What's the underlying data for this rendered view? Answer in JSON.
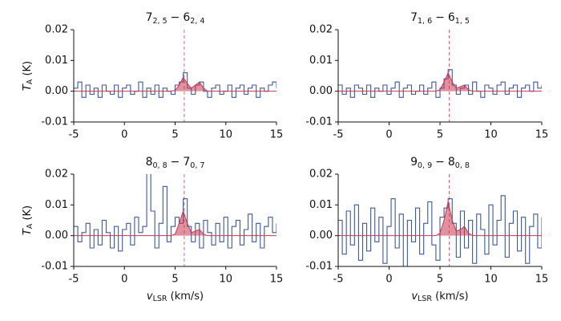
{
  "chart_data": [
    {
      "type": "step",
      "title": {
        "upper_level": "7",
        "upper_sub": "2, 5",
        "separator": "−",
        "lower_level": "6",
        "lower_sub": "2, 4"
      },
      "ylabel": {
        "symbol": "T",
        "subscript": "A",
        "unit": "(K)"
      },
      "xlim": [
        -5,
        15
      ],
      "xticks": [
        -5,
        0,
        5,
        10,
        15
      ],
      "ylim": [
        -0.01,
        0.02
      ],
      "yticks": [
        -0.01,
        {
          "value": 0,
          "label": "0.00"
        },
        0.01,
        0.02
      ],
      "marker_x": 5.9,
      "x": [
        -5,
        -4.6,
        -4.2,
        -3.8,
        -3.4,
        -3,
        -2.6,
        -2.2,
        -1.8,
        -1.4,
        -1,
        -0.6,
        -0.2,
        0.2,
        0.6,
        1,
        1.4,
        1.8,
        2.2,
        2.6,
        3,
        3.4,
        3.8,
        4.2,
        4.6,
        5,
        5.4,
        5.8,
        6.2,
        6.6,
        7,
        7.4,
        7.8,
        8.2,
        8.6,
        9,
        9.4,
        9.8,
        10.2,
        10.6,
        11,
        11.4,
        11.8,
        12.2,
        12.6,
        13,
        13.4,
        13.8,
        14.2,
        14.6,
        15
      ],
      "series": [
        {
          "color": "#3a57a8",
          "values": [
            0.001,
            0.003,
            -0.002,
            0.002,
            -0.001,
            0.001,
            -0.002,
            0.002,
            0.0,
            -0.001,
            0.002,
            -0.002,
            0.001,
            0.002,
            -0.001,
            0.0,
            0.003,
            -0.002,
            0.001,
            -0.001,
            0.002,
            -0.002,
            0.001,
            0.0,
            -0.001,
            0.002,
            0.003,
            0.006,
            0.001,
            -0.001,
            0.002,
            0.003,
            0.0,
            -0.002,
            0.001,
            0.002,
            -0.001,
            0.0,
            0.002,
            -0.002,
            0.001,
            0.002,
            -0.001,
            0.001,
            0.002,
            -0.002,
            0.001,
            0.0,
            0.002,
            0.003,
            0.001
          ]
        },
        {
          "color": "#c8384f",
          "x": [
            -5,
            4.6,
            5.0,
            5.4,
            5.8,
            6.2,
            6.6,
            7.0,
            7.4,
            7.8,
            8.2,
            15
          ],
          "values": [
            0,
            0,
            0.0003,
            0.002,
            0.0045,
            0.0025,
            0.001,
            0.002,
            0.003,
            0.001,
            0,
            0
          ]
        }
      ]
    },
    {
      "type": "step",
      "title": {
        "upper_level": "7",
        "upper_sub": "1, 6",
        "separator": "−",
        "lower_level": "6",
        "lower_sub": "1, 5"
      },
      "xlim": [
        -5,
        15
      ],
      "xticks": [
        -5,
        0,
        5,
        10,
        15
      ],
      "ylim": [
        -0.01,
        0.02
      ],
      "yticks": [
        -0.01,
        {
          "value": 0,
          "label": "0.00"
        },
        0.01,
        0.02
      ],
      "marker_x": 5.9,
      "x": [
        -5,
        -4.6,
        -4.2,
        -3.8,
        -3.4,
        -3,
        -2.6,
        -2.2,
        -1.8,
        -1.4,
        -1,
        -0.6,
        -0.2,
        0.2,
        0.6,
        1,
        1.4,
        1.8,
        2.2,
        2.6,
        3,
        3.4,
        3.8,
        4.2,
        4.6,
        5,
        5.4,
        5.8,
        6.2,
        6.6,
        7,
        7.4,
        7.8,
        8.2,
        8.6,
        9,
        9.4,
        9.8,
        10.2,
        10.6,
        11,
        11.4,
        11.8,
        12.2,
        12.6,
        13,
        13.4,
        13.8,
        14.2,
        14.6,
        15
      ],
      "series": [
        {
          "color": "#3a57a8",
          "values": [
            0.002,
            -0.001,
            0.001,
            -0.002,
            0.002,
            0.001,
            -0.001,
            0.002,
            -0.002,
            0.001,
            0.0,
            0.002,
            -0.001,
            0.001,
            0.003,
            -0.002,
            0.001,
            0.002,
            -0.001,
            0.0,
            0.002,
            -0.001,
            0.001,
            0.003,
            -0.002,
            0.001,
            0.004,
            0.007,
            0.002,
            -0.001,
            0.001,
            0.002,
            -0.001,
            0.003,
            0.0,
            -0.002,
            0.002,
            0.001,
            -0.001,
            0.002,
            0.003,
            -0.001,
            0.001,
            0.002,
            -0.002,
            0.001,
            0.002,
            0.0,
            0.003,
            0.001,
            0.002
          ]
        },
        {
          "color": "#c8384f",
          "x": [
            -5,
            4.6,
            5.0,
            5.4,
            5.8,
            6.2,
            6.6,
            7.0,
            7.4,
            7.8,
            8.2,
            15
          ],
          "values": [
            0,
            0,
            0.0005,
            0.003,
            0.006,
            0.003,
            0.001,
            0.0015,
            0.002,
            0.0005,
            0,
            0
          ]
        }
      ]
    },
    {
      "type": "step",
      "title": {
        "upper_level": "8",
        "upper_sub": "0, 8",
        "separator": "−",
        "lower_level": "7",
        "lower_sub": "0, 7"
      },
      "ylabel": {
        "symbol": "T",
        "subscript": "A",
        "unit": "(K)"
      },
      "xlabel": {
        "symbol": "v",
        "subscript": "LSR",
        "unit": "(km/s)"
      },
      "xlim": [
        -5,
        15
      ],
      "xticks": [
        -5,
        0,
        5,
        10,
        15
      ],
      "ylim": [
        -0.01,
        0.02
      ],
      "yticks": [
        -0.01,
        {
          "value": 0,
          "label": "0.00"
        },
        0.01,
        0.02
      ],
      "marker_x": 5.9,
      "x": [
        -5,
        -4.6,
        -4.2,
        -3.8,
        -3.4,
        -3,
        -2.6,
        -2.2,
        -1.8,
        -1.4,
        -1,
        -0.6,
        -0.2,
        0.2,
        0.6,
        1,
        1.4,
        1.8,
        2.2,
        2.6,
        3,
        3.4,
        3.8,
        4.2,
        4.6,
        5,
        5.4,
        5.8,
        6.2,
        6.6,
        7,
        7.4,
        7.8,
        8.2,
        8.6,
        9,
        9.4,
        9.8,
        10.2,
        10.6,
        11,
        11.4,
        11.8,
        12.2,
        12.6,
        13,
        13.4,
        13.8,
        14.2,
        14.6,
        15
      ],
      "series": [
        {
          "color": "#3a57a8",
          "values": [
            0.003,
            -0.002,
            0.001,
            0.004,
            -0.004,
            0.002,
            -0.003,
            0.005,
            0.001,
            -0.004,
            0.003,
            -0.005,
            0.002,
            0.004,
            -0.003,
            0.006,
            0.001,
            0.003,
            0.03,
            0.008,
            -0.004,
            0.004,
            0.016,
            -0.002,
            0.003,
            0.006,
            0.004,
            0.012,
            0.003,
            -0.002,
            0.004,
            -0.004,
            0.005,
            0.001,
            -0.003,
            0.004,
            -0.002,
            0.006,
            -0.004,
            0.003,
            0.005,
            -0.003,
            0.002,
            0.007,
            -0.002,
            0.004,
            -0.004,
            0.003,
            0.006,
            0.001,
            0.004
          ]
        },
        {
          "color": "#c8384f",
          "x": [
            -5,
            4.6,
            5.0,
            5.4,
            5.8,
            6.2,
            6.6,
            7.0,
            7.4,
            7.8,
            8.2,
            15
          ],
          "values": [
            0,
            0,
            0.0005,
            0.004,
            0.008,
            0.004,
            0.001,
            0.0015,
            0.002,
            0.0005,
            0,
            0
          ]
        }
      ]
    },
    {
      "type": "step",
      "title": {
        "upper_level": "9",
        "upper_sub": "0, 9",
        "separator": "−",
        "lower_level": "8",
        "lower_sub": "0, 8"
      },
      "xlabel": {
        "symbol": "v",
        "subscript": "LSR",
        "unit": "(km/s)"
      },
      "xlim": [
        -5,
        15
      ],
      "xticks": [
        -5,
        0,
        5,
        10,
        15
      ],
      "ylim": [
        -0.01,
        0.02
      ],
      "yticks": [
        -0.01,
        {
          "value": 0,
          "label": "0.00"
        },
        0.01,
        0.02
      ],
      "marker_x": 5.9,
      "x": [
        -5,
        -4.6,
        -4.2,
        -3.8,
        -3.4,
        -3,
        -2.6,
        -2.2,
        -1.8,
        -1.4,
        -1,
        -0.6,
        -0.2,
        0.2,
        0.6,
        1,
        1.4,
        1.8,
        2.2,
        2.6,
        3,
        3.4,
        3.8,
        4.2,
        4.6,
        5,
        5.4,
        5.8,
        6.2,
        6.6,
        7,
        7.4,
        7.8,
        8.2,
        8.6,
        9,
        9.4,
        9.8,
        10.2,
        10.6,
        11,
        11.4,
        11.8,
        12.2,
        12.6,
        13,
        13.4,
        13.8,
        14.2,
        14.6,
        15
      ],
      "series": [
        {
          "color": "#3a57a8",
          "values": [
            0.005,
            -0.006,
            0.008,
            -0.003,
            0.01,
            -0.008,
            0.004,
            -0.005,
            0.009,
            -0.002,
            0.006,
            -0.009,
            0.003,
            0.012,
            -0.004,
            0.007,
            -0.011,
            0.005,
            -0.002,
            0.009,
            -0.006,
            0.004,
            0.011,
            -0.003,
            -0.008,
            0.006,
            0.009,
            0.012,
            0.004,
            -0.007,
            0.008,
            -0.004,
            0.005,
            -0.009,
            0.007,
            0.002,
            -0.006,
            0.01,
            -0.003,
            0.005,
            0.013,
            -0.007,
            0.004,
            0.008,
            -0.005,
            0.006,
            -0.009,
            0.003,
            0.007,
            -0.004,
            0.006
          ]
        },
        {
          "color": "#c8384f",
          "x": [
            -5,
            4.6,
            5.0,
            5.4,
            5.8,
            6.2,
            6.6,
            7.0,
            7.4,
            7.8,
            8.2,
            15
          ],
          "values": [
            0,
            0,
            0.0008,
            0.005,
            0.011,
            0.005,
            0.0015,
            0.002,
            0.003,
            0.0008,
            0,
            0
          ]
        }
      ]
    }
  ]
}
